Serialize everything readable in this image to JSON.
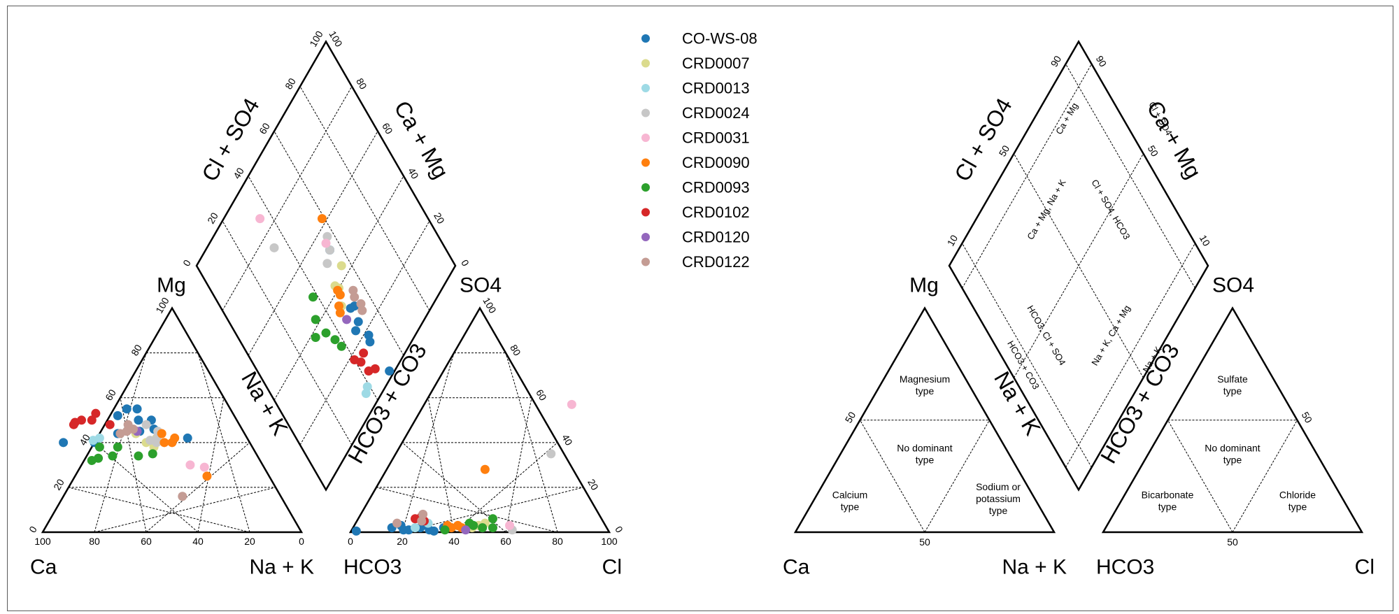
{
  "chart_data": [
    {
      "type": "scatter",
      "subtype": "piper",
      "corner_labels": {
        "ca": "Ca",
        "nak_cation": "Na + K",
        "mg": "Mg",
        "hco3": "HCO3",
        "cl": "Cl",
        "so4": "SO4"
      },
      "side_labels": {
        "mg_side": "Mg",
        "nak_side": "Na + K",
        "so4_side": "SO4",
        "hco3_co3_side": "HCO3 + CO3",
        "cl_so4_diamond": "Cl + SO4",
        "ca_mg_diamond": "Ca + Mg"
      },
      "ticks": [
        "0",
        "20",
        "40",
        "60",
        "80",
        "100"
      ],
      "grid": true,
      "legend_placement": "top-center",
      "series": [
        {
          "name": "CO-WS-08",
          "color": "#1f77b4",
          "cation_points": [
            [
              72,
              40
            ],
            [
              60,
              40
            ],
            [
              49,
              44
            ],
            [
              45,
              52
            ],
            [
              40,
              55
            ],
            [
              36,
              55
            ],
            [
              33,
              50
            ],
            [
              34,
              46
            ],
            [
              23,
              42
            ],
            [
              40,
              45
            ],
            [
              38,
              50
            ]
          ],
          "anion_points": [
            [
              2,
              0.5
            ],
            [
              15,
              2
            ],
            [
              18,
              3
            ],
            [
              20,
              1
            ],
            [
              26,
              2
            ],
            [
              28,
              3
            ],
            [
              22,
              1
            ],
            [
              30,
              1
            ],
            [
              32,
              0.5
            ],
            [
              35,
              2
            ]
          ],
          "diamond_points": [
            [
              2,
              49
            ],
            [
              16,
              50
            ],
            [
              18,
              49
            ],
            [
              25,
              50
            ],
            [
              24,
              53
            ],
            [
              30,
              48
            ],
            [
              31,
              50
            ],
            [
              52,
              45
            ]
          ]
        },
        {
          "name": "CRD0007",
          "color": "#dbdb8d",
          "cation_points": [
            [
              36,
              40
            ],
            [
              40,
              40
            ],
            [
              35,
              42
            ],
            [
              42,
              44
            ],
            [
              38,
              38
            ]
          ],
          "anion_points": [
            [
              48,
              3
            ],
            [
              50,
              4
            ],
            [
              46,
              2
            ]
          ],
          "diamond_points": [
            [
              40,
              50
            ],
            [
              42,
              51
            ],
            [
              35,
              53
            ],
            [
              44,
              44
            ]
          ]
        },
        {
          "name": "CRD0013",
          "color": "#9edae5",
          "cation_points": [
            [
              60,
              41
            ],
            [
              57,
              42
            ]
          ],
          "anion_points": [
            [
              24,
              2
            ],
            [
              28,
              4
            ]
          ],
          "diamond_points": [
            [
              7,
              61
            ],
            [
              6,
              63
            ]
          ]
        },
        {
          "name": "CRD0024",
          "color": "#c7c7c7",
          "cation_points": [
            [
              38,
              41
            ],
            [
              36,
              40
            ],
            [
              34,
              43
            ],
            [
              33,
              45
            ],
            [
              36,
              48
            ]
          ],
          "anion_points": [
            [
              60,
              35
            ],
            [
              62,
              1
            ],
            [
              50,
              2
            ]
          ],
          "diamond_points": [
            [
              74,
              66
            ],
            [
              50,
              49
            ],
            [
              52,
              45
            ],
            [
              56,
              43
            ]
          ]
        },
        {
          "name": "CRD0031",
          "color": "#f7b6d2",
          "cation_points": [
            [
              28,
              30
            ],
            [
              23,
              29
            ]
          ],
          "anion_points": [
            [
              57,
              57
            ],
            [
              60,
              3
            ]
          ],
          "diamond_points": [
            [
              86,
              65
            ],
            [
              55,
              45
            ]
          ]
        },
        {
          "name": "CRD0090",
          "color": "#ff7f0e",
          "cation_points": [
            [
              30,
              40
            ],
            [
              28,
              42
            ],
            [
              32,
              44
            ],
            [
              24,
              25
            ],
            [
              33,
              40
            ]
          ],
          "anion_points": [
            [
              38,
              2
            ],
            [
              40,
              3
            ],
            [
              42,
              2
            ],
            [
              36,
              3
            ],
            [
              38,
              28
            ]
          ],
          "diamond_points": [
            [
              34,
              55
            ],
            [
              36,
              54
            ],
            [
              38,
              51
            ],
            [
              40,
              51
            ],
            [
              62,
              41
            ]
          ]
        },
        {
          "name": "CRD0093",
          "color": "#2ca02c",
          "cation_points": [
            [
              65,
              32
            ],
            [
              62,
              33
            ],
            [
              59,
              38
            ],
            [
              56,
              34
            ],
            [
              52,
              38
            ],
            [
              46,
              34
            ],
            [
              40,
              35
            ]
          ],
          "anion_points": [
            [
              36,
              1
            ],
            [
              44,
              4
            ],
            [
              46,
              3
            ],
            [
              50,
              2
            ],
            [
              52,
              6
            ],
            [
              54,
              2
            ]
          ],
          "diamond_points": [
            [
              26,
              62
            ],
            [
              30,
              63
            ],
            [
              35,
              65
            ],
            [
              38,
              70
            ],
            [
              42,
              66
            ],
            [
              48,
              62
            ]
          ]
        },
        {
          "name": "CRD0102",
          "color": "#d62728",
          "cation_points": [
            [
              63,
              49
            ],
            [
              60,
              50
            ],
            [
              56,
              50
            ],
            [
              53,
              53
            ],
            [
              50,
              48
            ],
            [
              64,
              48
            ]
          ],
          "anion_points": [
            [
              22,
              6
            ],
            [
              24,
              7
            ],
            [
              26,
              5
            ]
          ],
          "diamond_points": [
            [
              8,
              54
            ],
            [
              10,
              57
            ],
            [
              15,
              58
            ],
            [
              18,
              60
            ],
            [
              16,
              55
            ]
          ]
        },
        {
          "name": "CRD0120",
          "color": "#9467bd",
          "cation_points": [
            [
              41,
              45
            ]
          ],
          "anion_points": [
            [
              44,
              1
            ]
          ],
          "diamond_points": [
            [
              30,
              54
            ]
          ]
        },
        {
          "name": "CRD0122",
          "color": "#c49c94",
          "cation_points": [
            [
              48,
              44
            ],
            [
              45,
              45
            ],
            [
              43,
              48
            ],
            [
              42,
              46
            ],
            [
              38,
              16
            ]
          ],
          "anion_points": [
            [
              16,
              4
            ],
            [
              24,
              8
            ],
            [
              25,
              5
            ]
          ],
          "diamond_points": [
            [
              28,
              45
            ],
            [
              26,
              46
            ],
            [
              32,
              46
            ],
            [
              34,
              45
            ]
          ]
        }
      ]
    },
    {
      "type": "diagram",
      "subtype": "piper-facies-reference",
      "corner_labels": {
        "ca": "Ca",
        "nak_cation": "Na + K",
        "mg": "Mg",
        "hco3": "HCO3",
        "cl": "Cl",
        "so4": "SO4"
      },
      "side_labels": {
        "nak_side": "Na + K",
        "hco3_co3_side": "HCO3 + CO3",
        "cl_so4_diamond": "Cl + SO4",
        "ca_mg_diamond": "Ca + Mg"
      },
      "ticks": {
        "t10": "10",
        "t50": "50",
        "t90": "90"
      },
      "cation_facies": {
        "magnesium": "Magnesium\ntype",
        "none": "No dominant\ntype",
        "calcium": "Calcium\ntype",
        "sodium": "Sodium or\npotassium\ntype"
      },
      "anion_facies": {
        "sulfate": "Sulfate\ntype",
        "none": "No dominant\ntype",
        "bicarbonate": "Bicarbonate\ntype",
        "chloride": "Chloride\ntype"
      },
      "diamond_labels": {
        "ca_mg_top": "Ca + Mg",
        "cl_so4_top": "Cl + SO4",
        "na_k_bottom": "Na + K",
        "hco3_co3_bottom": "HCO3 + CO3",
        "ca_mg_na_k": "Ca + Mg, Na + K",
        "cl_so4_hco3": "Cl + SO4, HCO3",
        "hco3_cl_so4": "HCO3, Cl + SO4",
        "na_k_ca_mg": "Na + K, Ca + Mg"
      }
    }
  ]
}
